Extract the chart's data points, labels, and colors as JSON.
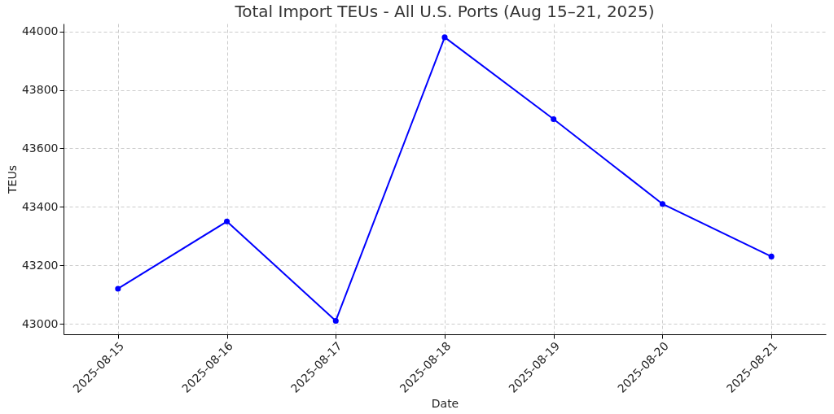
{
  "chart_data": {
    "type": "line",
    "title": "Total Import TEUs - All U.S. Ports (Aug 15–21, 2025)",
    "xlabel": "Date",
    "ylabel": "TEUs",
    "categories": [
      "2025-08-15",
      "2025-08-16",
      "2025-08-17",
      "2025-08-18",
      "2025-08-19",
      "2025-08-20",
      "2025-08-21"
    ],
    "series": [
      {
        "color": "#0000ff",
        "values": [
          43120,
          43350,
          43010,
          43980,
          43700,
          43410,
          43230
        ]
      }
    ],
    "ylim": [
      42964,
      44027
    ],
    "yticks": [
      43000,
      43200,
      43400,
      43600,
      43800,
      44000
    ],
    "grid": true,
    "marker": "circle",
    "line_style": "solid"
  }
}
